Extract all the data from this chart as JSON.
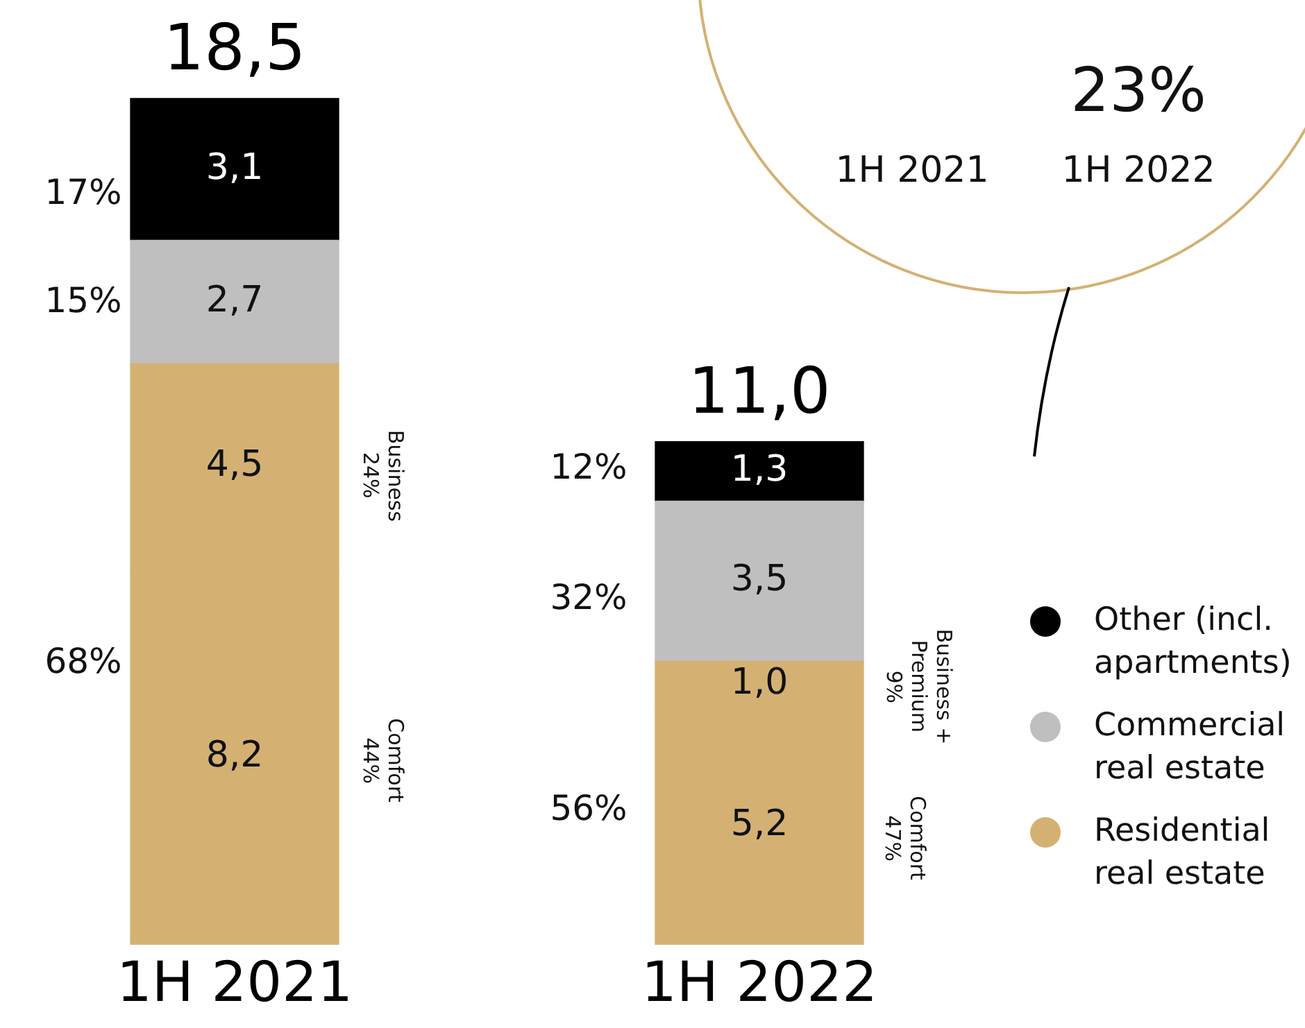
{
  "chart_data": {
    "type": "bar",
    "stacked": true,
    "categories": [
      "1H 2021",
      "1H 2022"
    ],
    "series": [
      {
        "name": "Residential real estate",
        "color": "#d4b173",
        "values": [
          8.2,
          5.2
        ],
        "value_labels": [
          "8,2",
          "5,2"
        ]
      },
      {
        "color": "#d4b173",
        "values": [
          4.5,
          1.0
        ],
        "value_labels": [
          "4,5",
          "1,0"
        ]
      },
      {
        "name": "Commercial real estate",
        "color": "#bfbfbf",
        "values": [
          2.7,
          3.5
        ],
        "value_labels": [
          "2,7",
          "3,5"
        ]
      },
      {
        "name": "Other (incl. apartments)",
        "color": "#000000",
        "values": [
          3.1,
          1.3
        ],
        "value_labels": [
          "3,1",
          "1,3"
        ]
      }
    ],
    "totals": [
      "18,5",
      "11,0"
    ],
    "annotations": [
      "17%",
      "15%",
      "68%",
      "12%",
      "32%",
      "56%",
      "Business\n24%",
      "Comfort\n44%",
      "Business +\nPremium\n9%",
      "Comfort\n47%",
      "23%",
      "1H 2021",
      "1H 2022"
    ],
    "legend": "right",
    "grid": false,
    "tick_labels": "x"
  }
}
